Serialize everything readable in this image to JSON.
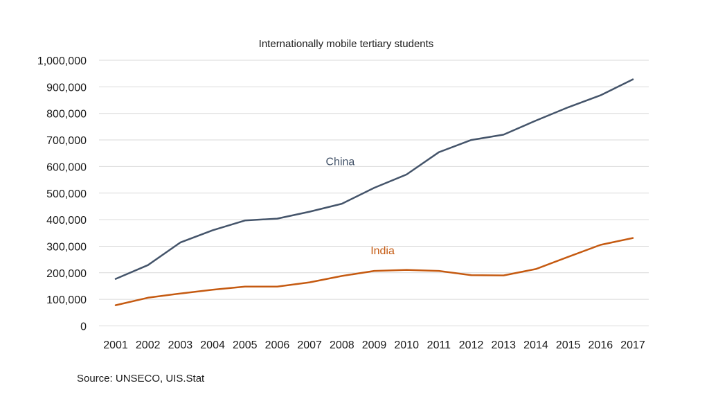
{
  "chart_data": {
    "type": "line",
    "title": "Internationally mobile tertiary students",
    "xlabel": "",
    "ylabel": "",
    "x": [
      "2001",
      "2002",
      "2003",
      "2004",
      "2005",
      "2006",
      "2007",
      "2008",
      "2009",
      "2010",
      "2011",
      "2012",
      "2013",
      "2014",
      "2015",
      "2016",
      "2017"
    ],
    "ylim": [
      0,
      1000000
    ],
    "yticks": [
      0,
      100000,
      200000,
      300000,
      400000,
      500000,
      600000,
      700000,
      800000,
      900000,
      1000000
    ],
    "ytick_labels": [
      "0",
      "100,000",
      "200,000",
      "300,000",
      "400,000",
      "500,000",
      "600,000",
      "700,000",
      "800,000",
      "900,000",
      "1,000,000"
    ],
    "grid": true,
    "legend": "inline labels",
    "series": [
      {
        "name": "China",
        "color": "#44546A",
        "label_anchor_year": "2009",
        "label_anchor_value": 620000,
        "values": [
          177000,
          229000,
          314000,
          360000,
          397000,
          404000,
          430000,
          460000,
          520000,
          570000,
          654000,
          700000,
          720000,
          773000,
          823000,
          868000,
          928000
        ]
      },
      {
        "name": "India",
        "color": "#C55A11",
        "label_anchor_year": "2010",
        "label_anchor_value": 285000,
        "values": [
          78000,
          106000,
          122000,
          136000,
          148000,
          148000,
          164000,
          188000,
          207000,
          211000,
          207000,
          191000,
          190000,
          214000,
          260000,
          305000,
          331000
        ]
      }
    ]
  },
  "source_note": "Source: UNSECO, UIS.Stat"
}
